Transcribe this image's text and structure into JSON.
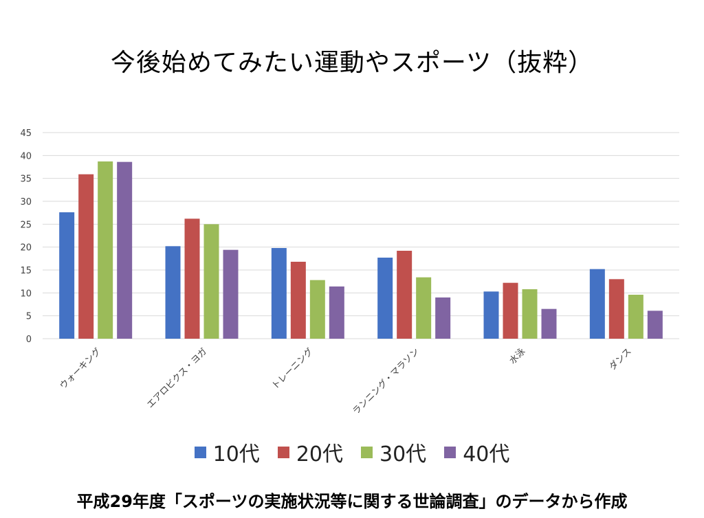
{
  "chart_data": {
    "type": "bar",
    "title": "今後始めてみたい運動やスポーツ（抜粋）",
    "categories": [
      "ウォーキング",
      "エアロビクス・ヨガ",
      "トレーニング",
      "ランニング・マラソン",
      "水泳",
      "ダンス"
    ],
    "series": [
      {
        "name": "10代",
        "color": "#4472c4",
        "values": [
          27.6,
          20.2,
          19.8,
          17.7,
          10.3,
          15.2
        ]
      },
      {
        "name": "20代",
        "color": "#c0504d",
        "values": [
          35.9,
          26.2,
          16.8,
          19.2,
          12.2,
          13.0
        ]
      },
      {
        "name": "30代",
        "color": "#9bbb59",
        "values": [
          38.7,
          25.0,
          12.8,
          13.4,
          10.8,
          9.6
        ]
      },
      {
        "name": "40代",
        "color": "#8064a2",
        "values": [
          38.6,
          19.4,
          11.4,
          9.0,
          6.5,
          6.1
        ]
      }
    ],
    "ylim": [
      0,
      45
    ],
    "yticks": [
      0,
      5,
      10,
      15,
      20,
      25,
      30,
      35,
      40,
      45
    ],
    "grid": true,
    "legend_position": "bottom"
  },
  "footnote": "平成29年度「スポーツの実施状況等に関する世論調査」のデータから作成"
}
